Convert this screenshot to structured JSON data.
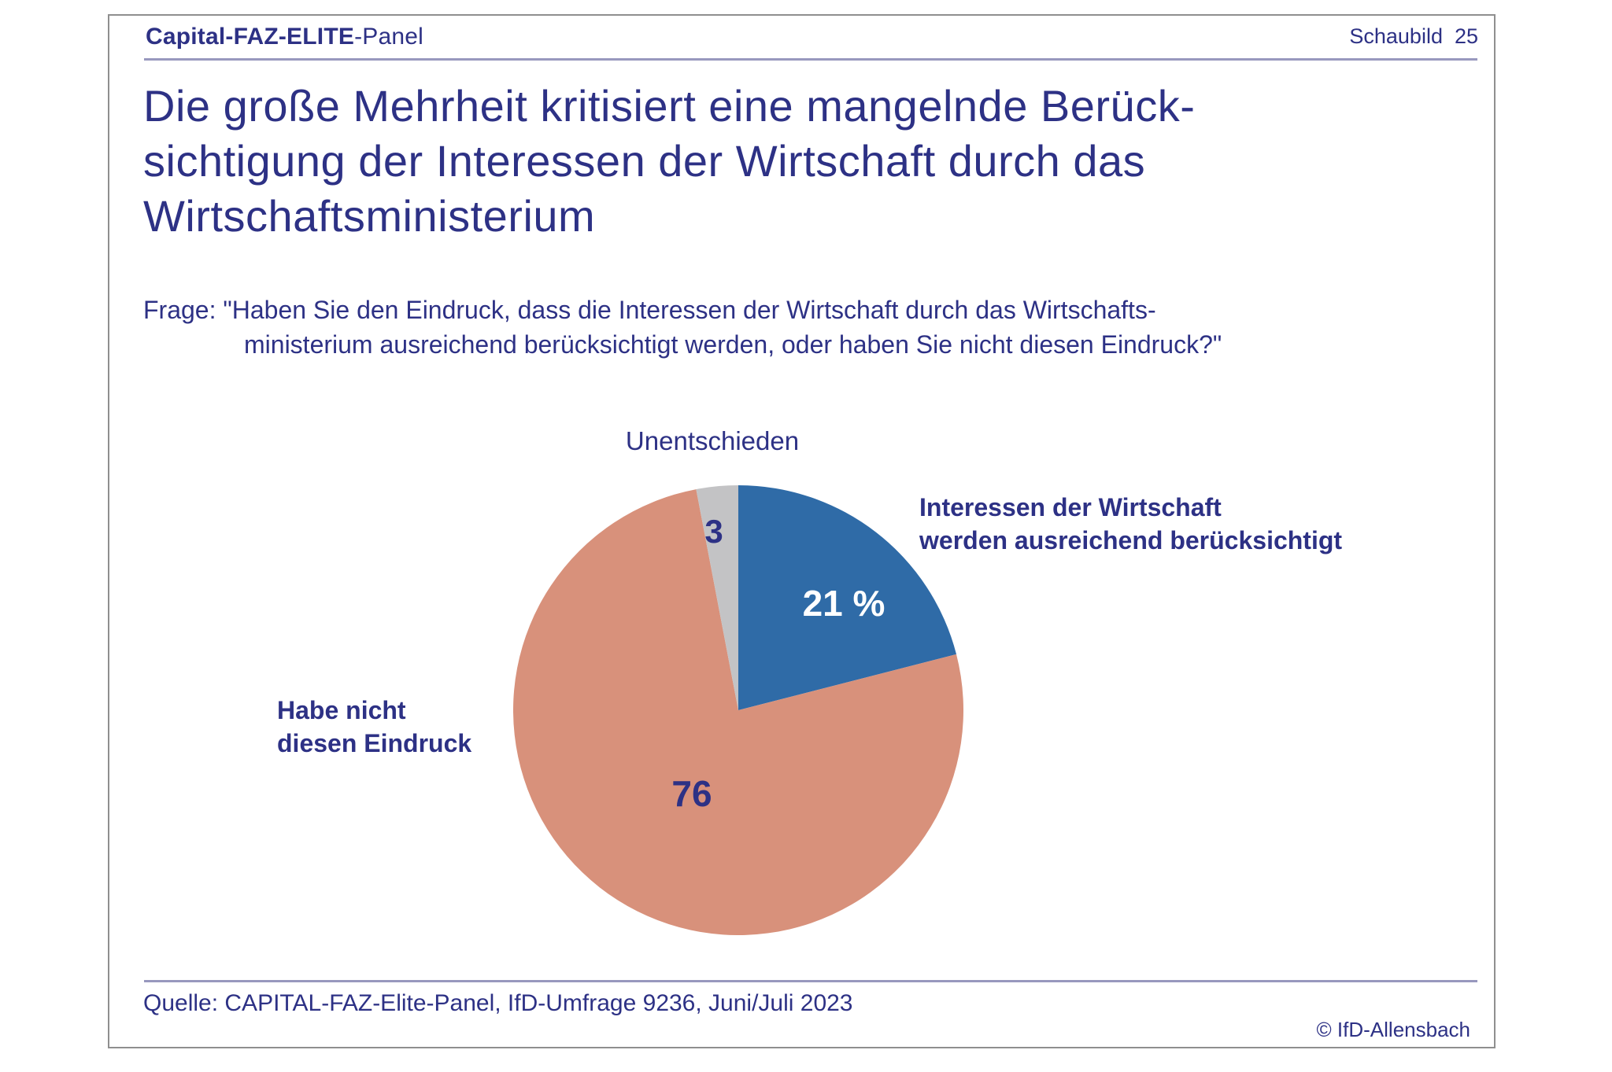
{
  "page": {
    "text_color": "#2d3185",
    "border_color": "#8f8f8f",
    "accent_rule_color": "#9898be"
  },
  "header": {
    "brand_bold": "Capital-FAZ-ELITE",
    "brand_regular": "-Panel",
    "slide_label": "Schaubild  25"
  },
  "title": "Die große Mehrheit kritisiert eine mangelnde Berück-\nsichtigung der Interessen der Wirtschaft durch das\nWirtschaftsministerium",
  "question": {
    "line1": "Frage: \"Haben Sie den Eindruck, dass die Interessen der Wirtschaft durch das Wirtschafts-",
    "line2": "ministerium ausreichend berücksichtigt werden, oder haben Sie nicht diesen Eindruck?\""
  },
  "chart_data": {
    "type": "pie",
    "start": "12-oclock",
    "direction": "clockwise",
    "unit": "%",
    "slices": [
      {
        "name": "ausreichend",
        "label": "Interessen der Wirtschaft\nwerden ausreichend berücksichtigt",
        "value": 21,
        "value_display": "21 %",
        "color": "#2f6ba7",
        "value_text_color": "#ffffff"
      },
      {
        "name": "nicht-diesen-eindruck",
        "label": "Habe nicht\ndiesen Eindruck",
        "value": 76,
        "value_display": "76",
        "color": "#d8917b",
        "value_text_color": "#2d3185"
      },
      {
        "name": "unentschieden",
        "label": "Unentschieden",
        "value": 3,
        "value_display": "3",
        "color": "#c3c3c5",
        "value_text_color": "#2d3185"
      }
    ]
  },
  "footer": {
    "source": "Quelle: CAPITAL-FAZ-Elite-Panel, IfD-Umfrage 9236, Juni/Juli 2023",
    "copyright": "© IfD-Allensbach"
  }
}
